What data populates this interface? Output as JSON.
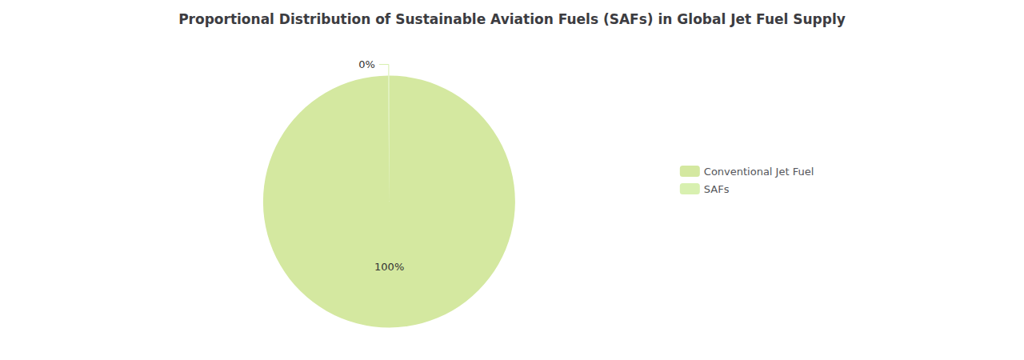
{
  "chart_data": {
    "type": "pie",
    "title": "Proportional Distribution of Sustainable Aviation Fuels (SAFs) in Global Jet Fuel Supply",
    "categories": [
      "Conventional Jet Fuel",
      "SAFs"
    ],
    "values": [
      99.9,
      0.1
    ],
    "value_labels": [
      "100%",
      "0%"
    ],
    "data_labels": true,
    "colors": [
      "#d4e8a0",
      "#d8f0b0"
    ],
    "legend": "right"
  }
}
